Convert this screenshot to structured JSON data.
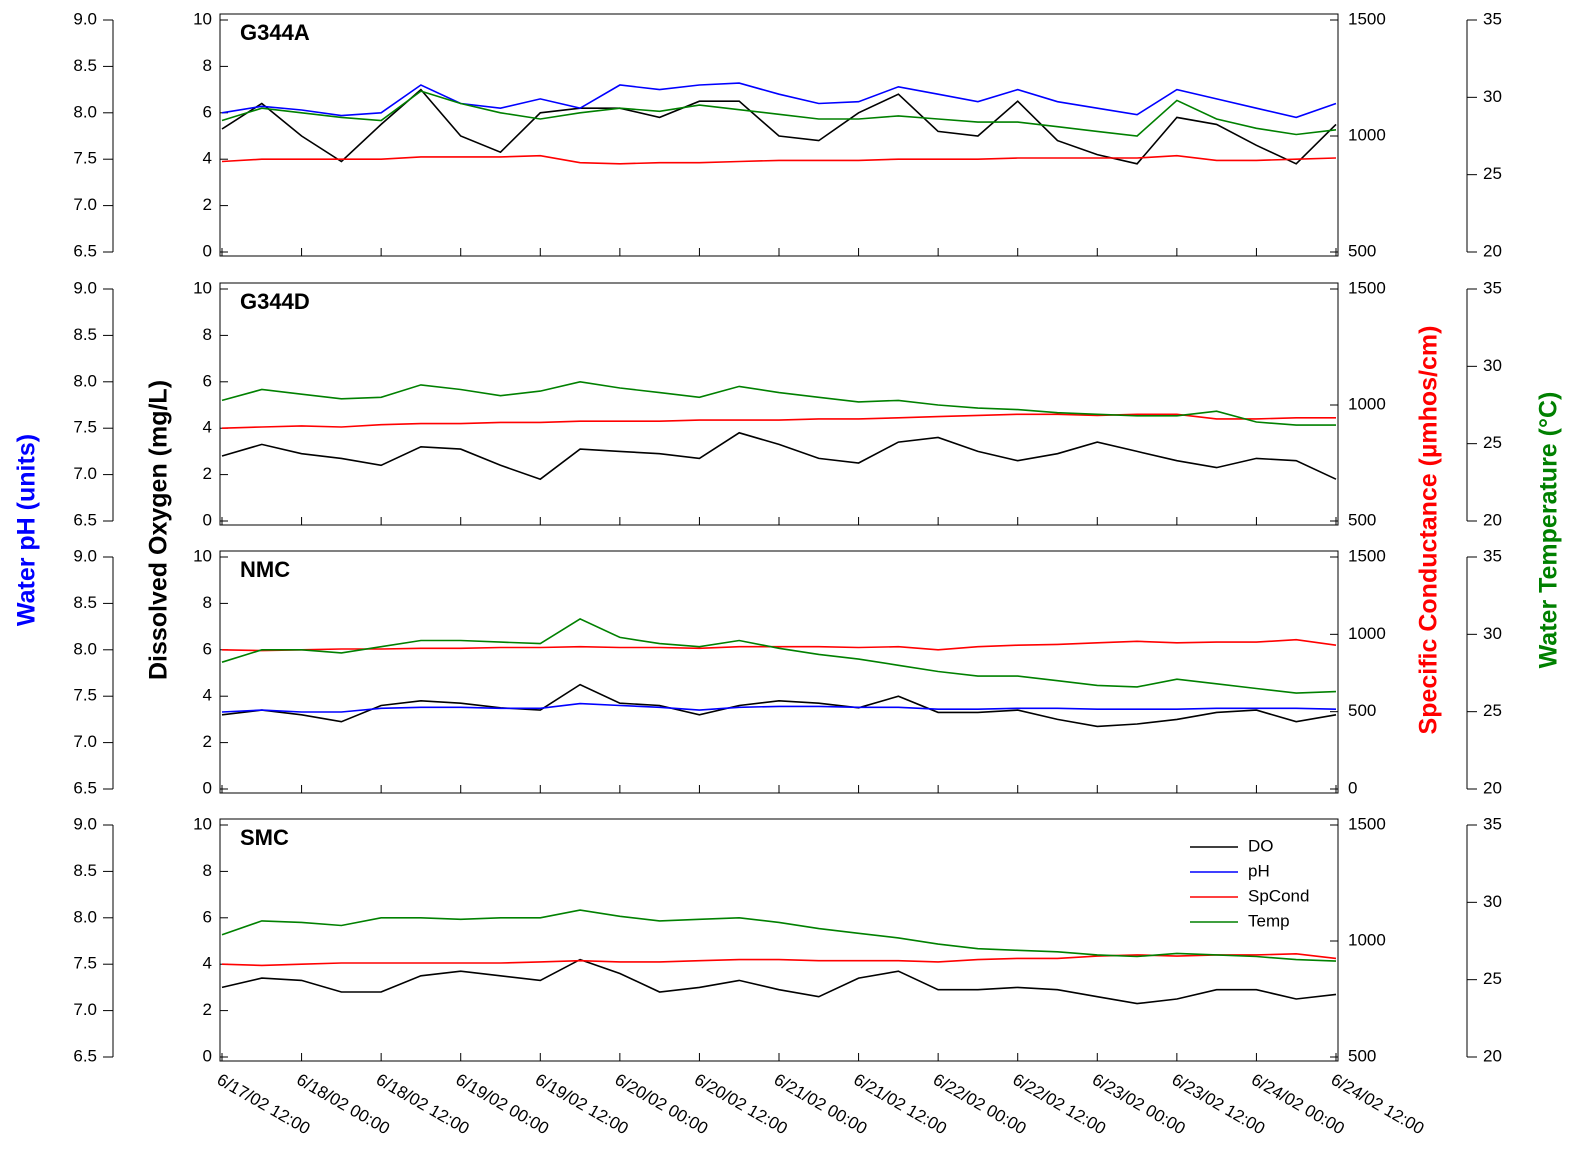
{
  "chart_data": {
    "type": "line",
    "x": [
      "6/17/02 12:00",
      "6/17/02 18:00",
      "6/18/02 00:00",
      "6/18/02 06:00",
      "6/18/02 12:00",
      "6/18/02 18:00",
      "6/19/02 00:00",
      "6/19/02 06:00",
      "6/19/02 12:00",
      "6/19/02 18:00",
      "6/20/02 00:00",
      "6/20/02 06:00",
      "6/20/02 12:00",
      "6/20/02 18:00",
      "6/21/02 00:00",
      "6/21/02 06:00",
      "6/21/02 12:00",
      "6/21/02 18:00",
      "6/22/02 00:00",
      "6/22/02 06:00",
      "6/22/02 12:00",
      "6/22/02 18:00",
      "6/23/02 00:00",
      "6/23/02 06:00",
      "6/23/02 12:00",
      "6/23/02 18:00",
      "6/24/02 00:00",
      "6/24/02 06:00",
      "6/24/02 12:00"
    ],
    "xticks": [
      "6/17/02 12:00",
      "6/18/02 00:00",
      "6/18/02 12:00",
      "6/19/02 00:00",
      "6/19/02 12:00",
      "6/20/02 00:00",
      "6/20/02 12:00",
      "6/21/02 00:00",
      "6/21/02 12:00",
      "6/22/02 00:00",
      "6/22/02 12:00",
      "6/23/02 00:00",
      "6/23/02 12:00",
      "6/24/02 00:00",
      "6/24/02 12:00"
    ],
    "ylabel": "Dissolved Oxygen (mg/L)",
    "y2label": "Specific Conductance (µmhos/cm)",
    "y3label": "Water Temperature (°C)",
    "y4label": "Water pH (units)",
    "legend": "upper right",
    "panels": [
      {
        "title": "G344A",
        "ylim": [
          0,
          10
        ],
        "yticks": [
          0,
          2,
          4,
          6,
          8,
          10
        ],
        "y2lim": [
          500,
          1500
        ],
        "y2ticks": [
          500,
          1000,
          1500
        ],
        "y3lim": [
          20,
          35
        ],
        "y3ticks": [
          20,
          25,
          30,
          35
        ],
        "y4lim": [
          6.5,
          9.0
        ],
        "y4ticks": [
          6.5,
          {
            "value": 7,
            "label": "7.0"
          },
          7.5,
          {
            "value": 8,
            "label": "8.0"
          },
          8.5,
          {
            "value": 9,
            "label": "9.0"
          }
        ],
        "series": [
          {
            "name": "DO",
            "color": "#000000",
            "axis": "y",
            "values": [
              5.3,
              6.4,
              5.0,
              3.9,
              5.5,
              7.0,
              5.0,
              4.3,
              6.0,
              6.2,
              6.2,
              5.8,
              6.5,
              6.5,
              5.0,
              4.8,
              6.0,
              6.8,
              5.2,
              5.0,
              6.5,
              4.8,
              4.2,
              3.8,
              5.8,
              5.5,
              4.6,
              3.8,
              5.5
            ]
          },
          {
            "name": "pH",
            "color": "#0000ff",
            "axis": "y4",
            "values": [
              8.0,
              8.07,
              8.03,
              7.97,
              8.0,
              8.3,
              8.1,
              8.05,
              8.15,
              8.05,
              8.3,
              8.25,
              8.3,
              8.32,
              8.2,
              8.1,
              8.12,
              8.28,
              8.2,
              8.12,
              8.25,
              8.12,
              8.05,
              7.98,
              8.25,
              8.15,
              8.05,
              7.95,
              8.1
            ]
          },
          {
            "name": "SpCond",
            "color": "#ff0000",
            "axis": "y2",
            "values": [
              890,
              900,
              900,
              900,
              900,
              910,
              910,
              910,
              915,
              885,
              880,
              885,
              885,
              890,
              895,
              895,
              895,
              900,
              900,
              900,
              905,
              905,
              905,
              905,
              915,
              895,
              895,
              900,
              905
            ]
          },
          {
            "name": "Temp",
            "color": "#008000",
            "axis": "y3",
            "values": [
              28.5,
              29.3,
              29.0,
              28.7,
              28.5,
              30.4,
              29.6,
              29.0,
              28.6,
              29.0,
              29.3,
              29.1,
              29.5,
              29.2,
              28.9,
              28.6,
              28.6,
              28.8,
              28.6,
              28.4,
              28.4,
              28.1,
              27.8,
              27.5,
              29.8,
              28.6,
              28.0,
              27.6,
              27.9
            ]
          }
        ]
      },
      {
        "title": "G344D",
        "ylim": [
          0,
          10
        ],
        "yticks": [
          0,
          2,
          4,
          6,
          8,
          10
        ],
        "y2lim": [
          500,
          1500
        ],
        "y2ticks": [
          500,
          1000,
          1500
        ],
        "y3lim": [
          20,
          35
        ],
        "y3ticks": [
          20,
          25,
          30,
          35
        ],
        "y4lim": [
          6.5,
          9.0
        ],
        "y4ticks": [
          6.5,
          {
            "value": 7,
            "label": "7.0"
          },
          7.5,
          {
            "value": 8,
            "label": "8.0"
          },
          8.5,
          {
            "value": 9,
            "label": "9.0"
          }
        ],
        "series": [
          {
            "name": "DO",
            "color": "#000000",
            "axis": "y",
            "values": [
              2.8,
              3.3,
              2.9,
              2.7,
              2.4,
              3.2,
              3.1,
              2.4,
              1.8,
              3.1,
              3.0,
              2.9,
              2.7,
              3.8,
              3.3,
              2.7,
              2.5,
              3.4,
              3.6,
              3.0,
              2.6,
              2.9,
              3.4,
              3.0,
              2.6,
              2.3,
              2.7,
              2.6,
              1.8
            ]
          },
          {
            "name": "SpCond",
            "color": "#ff0000",
            "axis": "y2",
            "values": [
              900,
              905,
              910,
              905,
              915,
              920,
              920,
              925,
              925,
              930,
              930,
              930,
              935,
              935,
              935,
              940,
              940,
              945,
              950,
              955,
              960,
              960,
              955,
              960,
              960,
              940,
              940,
              945,
              945
            ]
          },
          {
            "name": "Temp",
            "color": "#008000",
            "axis": "y3",
            "values": [
              27.8,
              28.5,
              28.2,
              27.9,
              28.0,
              28.8,
              28.5,
              28.1,
              28.4,
              29.0,
              28.6,
              28.3,
              28.0,
              28.7,
              28.3,
              28.0,
              27.7,
              27.8,
              27.5,
              27.3,
              27.2,
              27.0,
              26.9,
              26.8,
              26.8,
              27.1,
              26.4,
              26.2,
              26.2
            ]
          }
        ]
      },
      {
        "title": "NMC",
        "ylim": [
          0,
          10
        ],
        "yticks": [
          0,
          2,
          4,
          6,
          8,
          10
        ],
        "y2lim": [
          0,
          1500
        ],
        "y2ticks": [
          0,
          500,
          1000,
          1500
        ],
        "y3lim": [
          20,
          35
        ],
        "y3ticks": [
          20,
          25,
          30,
          35
        ],
        "y4lim": [
          6.5,
          9.0
        ],
        "y4ticks": [
          6.5,
          {
            "value": 7,
            "label": "7.0"
          },
          7.5,
          {
            "value": 8,
            "label": "8.0"
          },
          8.5,
          {
            "value": 9,
            "label": "9.0"
          }
        ],
        "series": [
          {
            "name": "DO",
            "color": "#000000",
            "axis": "y",
            "values": [
              3.2,
              3.4,
              3.2,
              2.9,
              3.6,
              3.8,
              3.7,
              3.5,
              3.4,
              4.5,
              3.7,
              3.6,
              3.2,
              3.6,
              3.8,
              3.7,
              3.5,
              4.0,
              3.3,
              3.3,
              3.4,
              3.0,
              2.7,
              2.8,
              3.0,
              3.3,
              3.4,
              2.9,
              3.2
            ]
          },
          {
            "name": "pH",
            "color": "#0000ff",
            "axis": "y4",
            "values": [
              7.33,
              7.35,
              7.33,
              7.33,
              7.37,
              7.38,
              7.38,
              7.37,
              7.37,
              7.42,
              7.4,
              7.38,
              7.35,
              7.38,
              7.39,
              7.39,
              7.38,
              7.38,
              7.36,
              7.36,
              7.37,
              7.37,
              7.36,
              7.36,
              7.36,
              7.37,
              7.37,
              7.37,
              7.36
            ]
          },
          {
            "name": "SpCond",
            "color": "#ff0000",
            "axis": "y2",
            "values": [
              900,
              895,
              900,
              905,
              905,
              910,
              910,
              915,
              915,
              920,
              915,
              915,
              910,
              920,
              920,
              920,
              915,
              920,
              900,
              920,
              930,
              935,
              945,
              955,
              945,
              950,
              950,
              965,
              930
            ]
          },
          {
            "name": "Temp",
            "color": "#008000",
            "axis": "y3",
            "values": [
              28.2,
              29.0,
              29.0,
              28.8,
              29.2,
              29.6,
              29.6,
              29.5,
              29.4,
              31.0,
              29.8,
              29.4,
              29.2,
              29.6,
              29.1,
              28.7,
              28.4,
              28.0,
              27.6,
              27.3,
              27.3,
              27.0,
              26.7,
              26.6,
              27.1,
              26.8,
              26.5,
              26.2,
              26.3
            ]
          }
        ]
      },
      {
        "title": "SMC",
        "ylim": [
          0,
          10
        ],
        "yticks": [
          0,
          2,
          4,
          6,
          8,
          10
        ],
        "y2lim": [
          500,
          1500
        ],
        "y2ticks": [
          500,
          1000,
          1500
        ],
        "y3lim": [
          20,
          35
        ],
        "y3ticks": [
          20,
          25,
          30,
          35
        ],
        "y4lim": [
          6.5,
          9.0
        ],
        "y4ticks": [
          6.5,
          {
            "value": 7,
            "label": "7.0"
          },
          7.5,
          {
            "value": 8,
            "label": "8.0"
          },
          8.5,
          {
            "value": 9,
            "label": "9.0"
          }
        ],
        "series": [
          {
            "name": "DO",
            "color": "#000000",
            "axis": "y",
            "values": [
              3.0,
              3.4,
              3.3,
              2.8,
              2.8,
              3.5,
              3.7,
              3.5,
              3.3,
              4.2,
              3.6,
              2.8,
              3.0,
              3.3,
              2.9,
              2.6,
              3.4,
              3.7,
              2.9,
              2.9,
              3.0,
              2.9,
              2.6,
              2.3,
              2.5,
              2.9,
              2.9,
              2.5,
              2.7
            ]
          },
          {
            "name": "SpCond",
            "color": "#ff0000",
            "axis": "y2",
            "values": [
              900,
              895,
              900,
              905,
              905,
              905,
              905,
              905,
              910,
              915,
              910,
              910,
              915,
              920,
              920,
              915,
              915,
              915,
              910,
              920,
              925,
              925,
              935,
              940,
              935,
              940,
              940,
              945,
              925
            ]
          },
          {
            "name": "Temp",
            "color": "#008000",
            "axis": "y3",
            "values": [
              27.9,
              28.8,
              28.7,
              28.5,
              29.0,
              29.0,
              28.9,
              29.0,
              29.0,
              29.5,
              29.1,
              28.8,
              28.9,
              29.0,
              28.7,
              28.3,
              28.0,
              27.7,
              27.3,
              27.0,
              26.9,
              26.8,
              26.6,
              26.5,
              26.7,
              26.6,
              26.5,
              26.3,
              26.2
            ]
          }
        ]
      }
    ]
  }
}
